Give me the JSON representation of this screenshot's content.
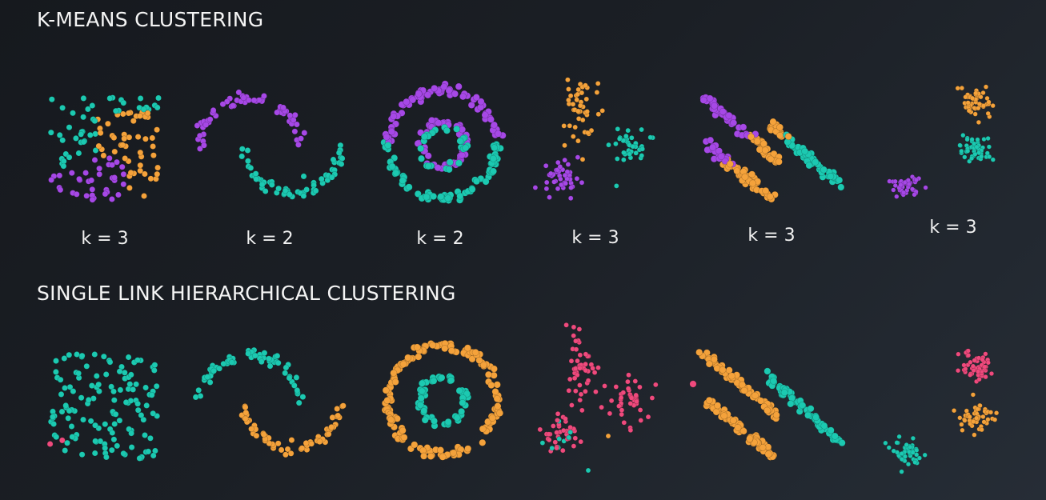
{
  "colors": {
    "teal": "#1cc9b1",
    "orange": "#f4a23b",
    "purple": "#a648e6",
    "pink": "#ef4a7d"
  },
  "kmeans": {
    "title": "K-MEANS CLUSTERING",
    "panels": [
      {
        "shape": "uniform-square",
        "k_label": "k = 3",
        "clusters": [
          "teal",
          "orange",
          "purple"
        ]
      },
      {
        "shape": "two-moons",
        "k_label": "k = 2",
        "clusters": [
          "purple",
          "teal"
        ]
      },
      {
        "shape": "concentric-rings",
        "k_label": "k = 2",
        "clusters": [
          "purple",
          "teal"
        ]
      },
      {
        "shape": "irregular-blobs",
        "k_label": "k = 3",
        "clusters": [
          "orange",
          "teal",
          "purple"
        ]
      },
      {
        "shape": "anisotropic-bands",
        "k_label": "k = 3",
        "clusters": [
          "purple",
          "orange",
          "teal"
        ]
      },
      {
        "shape": "three-blobs",
        "k_label": "k = 3",
        "clusters": [
          "orange",
          "teal",
          "purple"
        ]
      }
    ]
  },
  "single_link": {
    "title": "SINGLE LINK HIERARCHICAL CLUSTERING",
    "panels": [
      {
        "shape": "uniform-square",
        "clusters": [
          "teal",
          "pink"
        ]
      },
      {
        "shape": "two-moons",
        "clusters": [
          "teal",
          "orange"
        ]
      },
      {
        "shape": "concentric-rings",
        "clusters": [
          "orange",
          "teal"
        ]
      },
      {
        "shape": "irregular-blobs",
        "clusters": [
          "pink",
          "teal",
          "orange"
        ]
      },
      {
        "shape": "anisotropic-bands",
        "clusters": [
          "orange",
          "teal",
          "pink"
        ]
      },
      {
        "shape": "three-blobs",
        "clusters": [
          "pink",
          "orange",
          "teal"
        ]
      }
    ]
  }
}
